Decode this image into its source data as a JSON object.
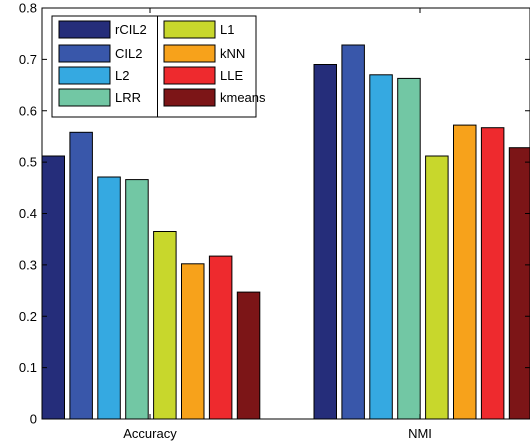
{
  "chart_data": {
    "type": "bar",
    "categories": [
      "Accuracy",
      "NMI"
    ],
    "ylim": [
      0,
      0.8
    ],
    "yticks": [
      "0",
      "0.1",
      "0.2",
      "0.3",
      "0.4",
      "0.5",
      "0.6",
      "0.7",
      "0.8"
    ],
    "grid": false,
    "legend_position": "top-left",
    "legend_columns": 2,
    "series": [
      {
        "name": "rCIL2",
        "color": "#252d7a",
        "values": [
          0.512,
          0.69
        ]
      },
      {
        "name": "CIL2",
        "color": "#3957aa",
        "values": [
          0.558,
          0.728
        ]
      },
      {
        "name": "L2",
        "color": "#35a9e1",
        "values": [
          0.471,
          0.67
        ]
      },
      {
        "name": "LRR",
        "color": "#72c7a4",
        "values": [
          0.466,
          0.663
        ]
      },
      {
        "name": "L1",
        "color": "#c8d72c",
        "values": [
          0.365,
          0.512
        ]
      },
      {
        "name": "kNN",
        "color": "#f7a21b",
        "values": [
          0.302,
          0.572
        ]
      },
      {
        "name": "LLE",
        "color": "#ee2a2e",
        "values": [
          0.317,
          0.567
        ]
      },
      {
        "name": "kmeans",
        "color": "#7c1517",
        "values": [
          0.247,
          0.528
        ]
      }
    ]
  }
}
